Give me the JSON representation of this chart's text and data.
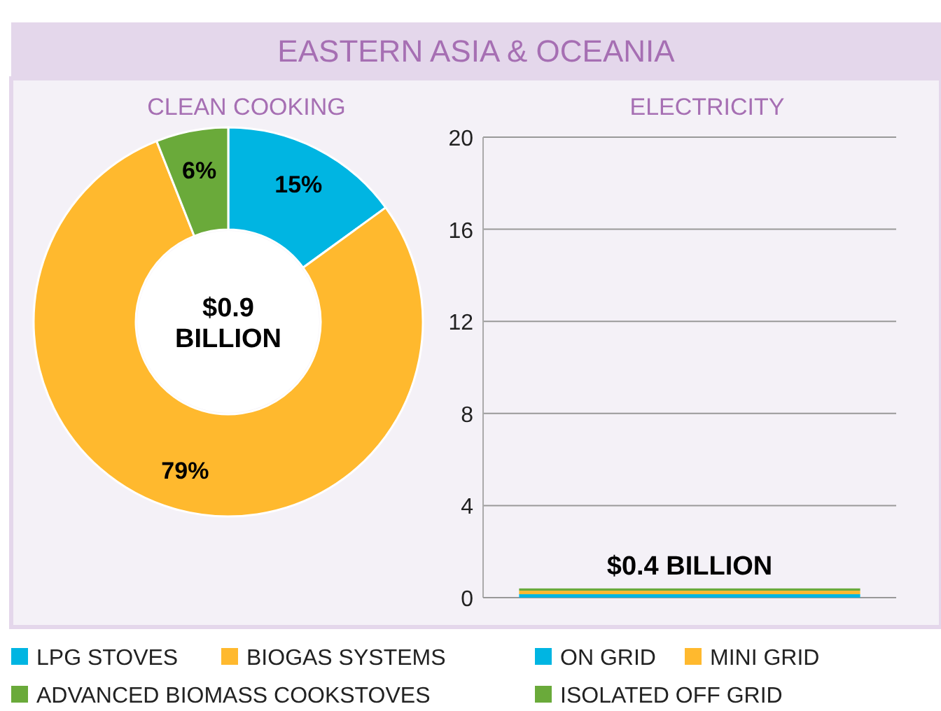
{
  "chart_data": [
    {
      "type": "other",
      "title": "EASTERN ASIA & OCEANIA"
    },
    {
      "type": "donut",
      "title": "CLEAN COOKING",
      "categories": [
        "LPG STOVES",
        "BIOGAS SYSTEMS",
        "ADVANCED BIOMASS COOKSTOVES"
      ],
      "values": [
        15,
        79,
        6
      ],
      "colors": [
        "#00b5e2",
        "#ffb92e",
        "#6aaa3a"
      ],
      "value_labels": [
        "15%",
        "79%",
        "6%"
      ],
      "annotations": [
        "$0.9 BILLION"
      ],
      "legend": "bottom"
    },
    {
      "type": "bar",
      "title": "ELECTRICITY",
      "categories": [
        null
      ],
      "stacked": true,
      "series": [
        {
          "name": "ON GRID",
          "color": "#00b5e2",
          "values": [
            0.15
          ]
        },
        {
          "name": "MINI GRID",
          "color": "#ffb92e",
          "values": [
            0.15
          ]
        },
        {
          "name": "ISOLATED OFF GRID",
          "color": "#6aaa3a",
          "values": [
            0.1
          ]
        }
      ],
      "totals": [
        "$0.4 BILLION"
      ],
      "ylim": [
        0,
        20
      ],
      "yticks": [
        0,
        4,
        8,
        12,
        16,
        20
      ],
      "grid": "y",
      "legend": "bottom"
    }
  ]
}
